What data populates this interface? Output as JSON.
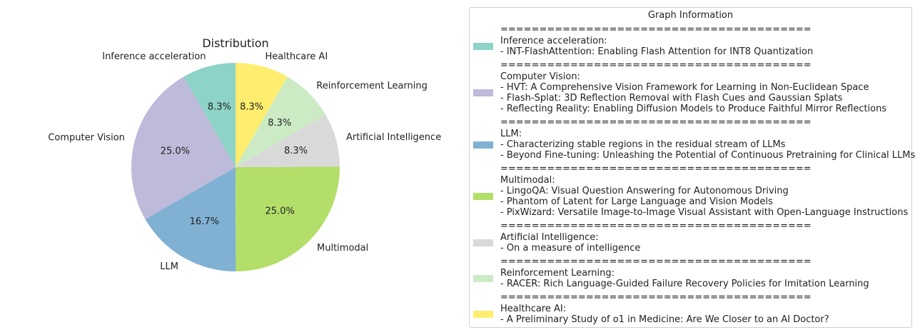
{
  "chart_data": {
    "type": "pie",
    "title": "Distribution",
    "slices": [
      {
        "label": "Inference acceleration",
        "value": 8.3,
        "pct_text": "8.3%",
        "color": "#8dd3c7"
      },
      {
        "label": "Computer Vision",
        "value": 25.0,
        "pct_text": "25.0%",
        "color": "#bebada"
      },
      {
        "label": "LLM",
        "value": 16.7,
        "pct_text": "16.7%",
        "color": "#80b1d3"
      },
      {
        "label": "Multimodal",
        "value": 25.0,
        "pct_text": "25.0%",
        "color": "#b3de69"
      },
      {
        "label": "Artificial Intelligence",
        "value": 8.3,
        "pct_text": "8.3%",
        "color": "#d9d9d9"
      },
      {
        "label": "Reinforcement Learning",
        "value": 8.3,
        "pct_text": "8.3%",
        "color": "#ccebc5"
      },
      {
        "label": "Healthcare AI",
        "value": 8.3,
        "pct_text": "8.3%",
        "color": "#ffed6f"
      }
    ],
    "legend": {
      "title": "Graph Information",
      "separator": "========================================",
      "entries": [
        {
          "name": "Inference acceleration:",
          "color": "#8dd3c7",
          "items": [
            "- INT-FlashAttention: Enabling Flash Attention for INT8 Quantization"
          ]
        },
        {
          "name": "Computer Vision:",
          "color": "#bebada",
          "items": [
            "- HVT: A Comprehensive Vision Framework for Learning in Non-Euclidean Space",
            "- Flash-Splat: 3D Reflection Removal with Flash Cues and Gaussian Splats",
            "- Reflecting Reality: Enabling Diffusion Models to Produce Faithful Mirror Reflections"
          ]
        },
        {
          "name": "LLM:",
          "color": "#80b1d3",
          "items": [
            "- Characterizing stable regions in the residual stream of LLMs",
            "- Beyond Fine-tuning: Unleashing the Potential of Continuous Pretraining for Clinical LLMs"
          ]
        },
        {
          "name": "Multimodal:",
          "color": "#b3de69",
          "items": [
            "- LingoQA: Visual Question Answering for Autonomous Driving",
            "- Phantom of Latent for Large Language and Vision Models",
            "- PixWizard: Versatile Image-to-Image Visual Assistant with Open-Language Instructions"
          ]
        },
        {
          "name": "Artificial Intelligence:",
          "color": "#d9d9d9",
          "items": [
            "- On a measure of intelligence"
          ]
        },
        {
          "name": "Reinforcement Learning:",
          "color": "#ccebc5",
          "items": [
            "- RACER: Rich Language-Guided Failure Recovery Policies for Imitation Learning"
          ]
        },
        {
          "name": "Healthcare AI:",
          "color": "#ffed6f",
          "items": [
            "- A Preliminary Study of o1 in Medicine: Are We Closer to an AI Doctor?"
          ]
        }
      ]
    }
  }
}
